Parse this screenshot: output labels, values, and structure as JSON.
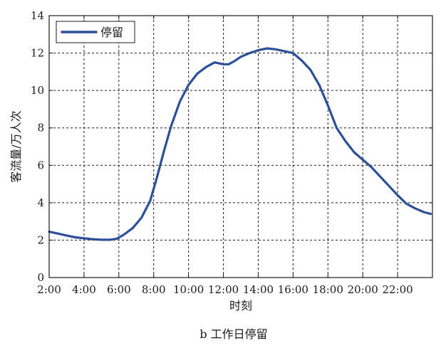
{
  "chart_data": {
    "type": "line",
    "xlabel": "时刻",
    "ylabel": "客流量/万人次",
    "caption": "b 工作日停留",
    "legend_position": "top-left",
    "grid": true,
    "grid_style": "dashed",
    "xlim": [
      2,
      24
    ],
    "ylim": [
      0,
      14
    ],
    "x_ticks": [
      2,
      4,
      6,
      8,
      10,
      12,
      14,
      16,
      18,
      20,
      22
    ],
    "x_tick_labels": [
      "2:00",
      "4:00",
      "6:00",
      "8:00",
      "10:00",
      "12:00",
      "14:00",
      "16:00",
      "18:00",
      "20:00",
      "22:00"
    ],
    "y_ticks": [
      0,
      2,
      4,
      6,
      8,
      10,
      12,
      14
    ],
    "y_tick_labels": [
      "0",
      "2",
      "4",
      "6",
      "8",
      "10",
      "12",
      "14"
    ],
    "series": [
      {
        "name": "停留",
        "color": "#2b4f9a",
        "x": [
          2.0,
          2.5,
          3.0,
          3.5,
          4.0,
          4.5,
          5.0,
          5.5,
          5.9,
          6.3,
          6.8,
          7.3,
          7.8,
          8.2,
          8.6,
          9.0,
          9.5,
          10.0,
          10.5,
          11.0,
          11.5,
          12.0,
          12.3,
          12.6,
          13.0,
          13.5,
          14.0,
          14.5,
          15.0,
          15.5,
          16.0,
          16.5,
          17.0,
          17.5,
          18.0,
          18.5,
          19.0,
          19.5,
          20.0,
          20.5,
          21.0,
          21.5,
          22.0,
          22.5,
          23.0,
          23.5,
          23.9
        ],
        "values": [
          2.45,
          2.35,
          2.25,
          2.15,
          2.1,
          2.05,
          2.02,
          2.02,
          2.08,
          2.3,
          2.65,
          3.2,
          4.1,
          5.4,
          6.8,
          8.1,
          9.4,
          10.3,
          10.9,
          11.25,
          11.5,
          11.4,
          11.4,
          11.55,
          11.8,
          12.0,
          12.15,
          12.25,
          12.2,
          12.1,
          12.0,
          11.6,
          11.1,
          10.3,
          9.2,
          8.0,
          7.3,
          6.7,
          6.3,
          5.9,
          5.4,
          4.9,
          4.4,
          3.95,
          3.7,
          3.5,
          3.4
        ]
      }
    ]
  }
}
